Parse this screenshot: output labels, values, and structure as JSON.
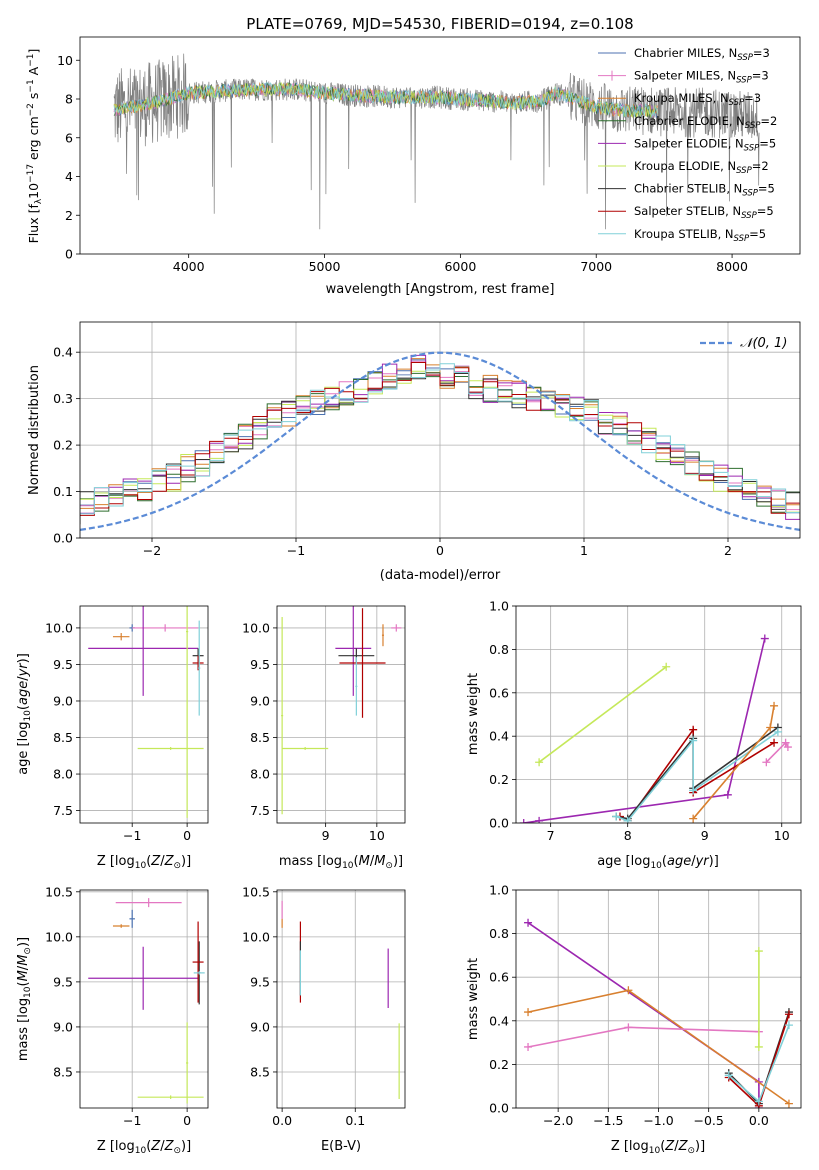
{
  "chart_data": [
    {
      "panel": "spectrum",
      "type": "line",
      "title": "PLATE=0769, MJD=54530, FIBERID=0194, z=0.108",
      "xlabel": "wavelength [Angstrom, rest frame]",
      "ylabel": "Flux [fλ10⁻¹⁷ erg cm⁻² s⁻¹ A⁻¹]",
      "xlim": [
        3200,
        8500
      ],
      "ylim": [
        0,
        11.2
      ],
      "xticks": [
        "4000",
        "5000",
        "6000",
        "7000",
        "8000"
      ],
      "yticks": [
        "0",
        "2",
        "4",
        "6",
        "8",
        "10"
      ],
      "grid": false,
      "legend_position": "top-right",
      "series": [
        {
          "name": "Chabrier MILES, NSSP=3",
          "label_main": "Chabrier MILES, N",
          "label_sub": "SSP",
          "label_tail": "=3",
          "color": "#4c72b0",
          "marker": "line"
        },
        {
          "name": "Salpeter MILES, NSSP=3",
          "label_main": "Salpeter MILES, N",
          "label_sub": "SSP",
          "label_tail": "=3",
          "color": "#e377c2",
          "marker": "plus"
        },
        {
          "name": "Kroupa MILES, NSSP=3",
          "label_main": "Kroupa MILES, N",
          "label_sub": "SSP",
          "label_tail": "=3",
          "color": "#d8802f",
          "marker": "line"
        },
        {
          "name": "Chabrier ELODIE, NSSP=2",
          "label_main": "Chabrier ELODIE, N",
          "label_sub": "SSP",
          "label_tail": "=2",
          "color": "#2f6e2f",
          "marker": "line"
        },
        {
          "name": "Salpeter ELODIE, NSSP=5",
          "label_main": "Salpeter ELODIE, N",
          "label_sub": "SSP",
          "label_tail": "=5",
          "color": "#9c27b0",
          "marker": "line"
        },
        {
          "name": "Kroupa ELODIE, NSSP=2",
          "label_main": "Kroupa ELODIE, N",
          "label_sub": "SSP",
          "label_tail": "=2",
          "color": "#c5e85a",
          "marker": "line"
        },
        {
          "name": "Chabrier STELIB, NSSP=5",
          "label_main": "Chabrier STELIB, N",
          "label_sub": "SSP",
          "label_tail": "=5",
          "color": "#333333",
          "marker": "line"
        },
        {
          "name": "Salpeter STELIB, NSSP=5",
          "label_main": "Salpeter STELIB, N",
          "label_sub": "SSP",
          "label_tail": "=5",
          "color": "#b00000",
          "marker": "line"
        },
        {
          "name": "Kroupa STELIB, NSSP=5",
          "label_main": "Kroupa STELIB, N",
          "label_sub": "SSP",
          "label_tail": "=5",
          "color": "#80d0d8",
          "marker": "line"
        }
      ],
      "data_color": "#808080",
      "continuum": {
        "x": [
          3400,
          3600,
          3800,
          4000,
          4200,
          4500,
          4800,
          5000,
          5200,
          5500,
          5800,
          6000,
          6200,
          6400,
          6600,
          6700,
          6800,
          7000,
          7200,
          7400,
          7600,
          7800,
          8000,
          8200
        ],
        "y": [
          7.4,
          7.6,
          7.9,
          8.3,
          8.4,
          8.5,
          8.5,
          8.3,
          8.2,
          8.1,
          8.1,
          8.0,
          7.9,
          7.8,
          7.9,
          8.3,
          8.1,
          7.6,
          7.4,
          7.4,
          7.3,
          7.3,
          7.2,
          7.1
        ]
      }
    },
    {
      "panel": "residuals",
      "type": "line",
      "xlabel": "(data-model)/error",
      "ylabel": "Normed distribution",
      "xlim": [
        -2.5,
        2.5
      ],
      "ylim": [
        0,
        0.465
      ],
      "xticks": [
        "−2",
        "−1",
        "0",
        "1",
        "2"
      ],
      "yticks": [
        "0.0",
        "0.1",
        "0.2",
        "0.3",
        "0.4"
      ],
      "grid": true,
      "legend_position": "top-right",
      "legend_label": "𝒩(0, 1)",
      "legend_color": "#5b8bd6",
      "bin_width": 0.1,
      "base_values": [
        0.04,
        0.04,
        0.05,
        0.06,
        0.07,
        0.08,
        0.09,
        0.1,
        0.11,
        0.12,
        0.13,
        0.15,
        0.16,
        0.18,
        0.2,
        0.22,
        0.24,
        0.26,
        0.27,
        0.28,
        0.29,
        0.3,
        0.31,
        0.32,
        0.34,
        0.35,
        0.36,
        0.37,
        0.36,
        0.35,
        0.34,
        0.33,
        0.32,
        0.31,
        0.31,
        0.3,
        0.3,
        0.29,
        0.28,
        0.27,
        0.25,
        0.24,
        0.23,
        0.21,
        0.19,
        0.18,
        0.16,
        0.14,
        0.13,
        0.12,
        0.1,
        0.09,
        0.08,
        0.07,
        0.06,
        0.06,
        0.05,
        0.04
      ]
    },
    {
      "panel": "age-vs-Z",
      "type": "scatter",
      "xlabel": "Z [log₁₀(Z/Z⊙)]",
      "ylabel": "age  [log₁₀(age/yr)]",
      "xlim": [
        -1.95,
        0.38
      ],
      "ylim": [
        7.33,
        10.3
      ],
      "xticks": [
        "−1",
        "0"
      ],
      "yticks": [
        "7.5",
        "8.0",
        "8.5",
        "9.0",
        "9.5",
        "10.0"
      ],
      "grid": true,
      "points": [
        {
          "series": 0,
          "x": -1.0,
          "xerr": 0.05,
          "y": 10.0,
          "yerr": 0.05
        },
        {
          "series": 1,
          "x": -0.4,
          "xerr": 0.6,
          "y": 10.0,
          "yerr": 0.05
        },
        {
          "series": 2,
          "x": -1.2,
          "xerr": 0.15,
          "y": 9.88,
          "yerr": 0.05
        },
        {
          "series": 4,
          "x": -0.8,
          "xerr": 1.0,
          "y": 9.72,
          "yerr": 0.65
        },
        {
          "series": 5,
          "x": 0.0,
          "xerr": 0.02,
          "y": 9.95,
          "yerr": 2.55
        },
        {
          "series": 5,
          "x": -0.3,
          "xerr": 0.6,
          "y": 8.35,
          "yerr": 0.02
        },
        {
          "series": 6,
          "x": 0.2,
          "xerr": 0.1,
          "y": 9.62,
          "yerr": 0.1
        },
        {
          "series": 7,
          "x": 0.2,
          "xerr": 0.1,
          "y": 9.52,
          "yerr": 0.1
        },
        {
          "series": 8,
          "x": 0.22,
          "xerr": 0.02,
          "y": 9.45,
          "yerr": 0.65
        }
      ]
    },
    {
      "panel": "age-vs-mass",
      "type": "scatter",
      "xlabel": "mass [log₁₀(M/M⊙)]",
      "xlim": [
        8.05,
        10.55
      ],
      "ylim": [
        7.33,
        10.3
      ],
      "xticks": [
        "9",
        "10"
      ],
      "yticks": [
        "7.5",
        "8.0",
        "8.5",
        "9.0",
        "9.5",
        "10.0"
      ],
      "grid": true,
      "points": [
        {
          "series": 1,
          "x": 10.38,
          "xerr": 0.1,
          "y": 10.0,
          "yerr": 0.05
        },
        {
          "series": 2,
          "x": 10.12,
          "xerr": 0.02,
          "y": 9.9,
          "yerr": 0.15
        },
        {
          "series": 4,
          "x": 9.54,
          "xerr": 0.35,
          "y": 9.72,
          "yerr": 0.65
        },
        {
          "series": 5,
          "x": 8.15,
          "xerr": 0.02,
          "y": 8.8,
          "yerr": 1.35
        },
        {
          "series": 5,
          "x": 8.6,
          "xerr": 0.45,
          "y": 8.35,
          "yerr": 0.02
        },
        {
          "series": 6,
          "x": 9.6,
          "xerr": 0.35,
          "y": 9.62,
          "yerr": 0.1
        },
        {
          "series": 7,
          "x": 9.72,
          "xerr": 0.45,
          "y": 9.52,
          "yerr": 0.75
        },
        {
          "series": 8,
          "x": 9.6,
          "xerr": 0.02,
          "y": 9.2,
          "yerr": 0.4
        }
      ]
    },
    {
      "panel": "weight-vs-age",
      "type": "line",
      "xlabel": "age  [log₁₀(age/yr)]",
      "ylabel": "mass weight",
      "xlim": [
        6.55,
        10.25
      ],
      "ylim": [
        0,
        1.0
      ],
      "xticks": [
        "7",
        "8",
        "9",
        "10"
      ],
      "yticks": [
        "0.0",
        "0.2",
        "0.4",
        "0.6",
        "0.8",
        "1.0"
      ],
      "grid": true,
      "lines": [
        {
          "series": 5,
          "x": [
            6.85,
            8.5
          ],
          "y": [
            0.28,
            0.72
          ]
        },
        {
          "series": 4,
          "x": [
            6.65,
            6.85,
            9.3,
            9.78
          ],
          "y": [
            0.0,
            0.01,
            0.13,
            0.85
          ]
        },
        {
          "series": 7,
          "x": [
            7.9,
            8.0,
            8.85,
            8.85,
            9.9
          ],
          "y": [
            0.03,
            0.01,
            0.43,
            0.14,
            0.37
          ]
        },
        {
          "series": 6,
          "x": [
            7.85,
            8.0,
            8.85,
            8.85,
            9.95
          ],
          "y": [
            0.03,
            0.02,
            0.39,
            0.16,
            0.44
          ]
        },
        {
          "series": 8,
          "x": [
            7.85,
            8.0,
            8.85,
            8.85,
            9.95
          ],
          "y": [
            0.03,
            0.01,
            0.38,
            0.15,
            0.42
          ]
        },
        {
          "series": 2,
          "x": [
            8.85,
            9.85,
            9.9
          ],
          "y": [
            0.02,
            0.44,
            0.54
          ]
        },
        {
          "series": 1,
          "x": [
            9.8,
            10.05,
            10.08
          ],
          "y": [
            0.28,
            0.37,
            0.35
          ]
        }
      ]
    },
    {
      "panel": "mass-vs-Z",
      "type": "scatter",
      "xlabel": "Z [log₁₀(Z/Z⊙)]",
      "ylabel": "mass [log₁₀(M/M⊙)]",
      "xlim": [
        -1.95,
        0.38
      ],
      "ylim": [
        8.1,
        10.52
      ],
      "xticks": [
        "−1",
        "0"
      ],
      "yticks": [
        "8.5",
        "9.0",
        "9.5",
        "10.0",
        "10.5"
      ],
      "grid": true,
      "points": [
        {
          "series": 0,
          "x": -1.0,
          "xerr": 0.05,
          "y": 10.2,
          "yerr": 0.1
        },
        {
          "series": 1,
          "x": -0.7,
          "xerr": 0.6,
          "y": 10.38,
          "yerr": 0.05
        },
        {
          "series": 2,
          "x": -1.2,
          "xerr": 0.15,
          "y": 10.12,
          "yerr": 0.02
        },
        {
          "series": 4,
          "x": -0.8,
          "xerr": 1.0,
          "y": 9.54,
          "yerr": 0.35
        },
        {
          "series": 5,
          "x": 0.0,
          "xerr": 0.02,
          "y": 8.6,
          "yerr": 0.45
        },
        {
          "series": 5,
          "x": -0.3,
          "xerr": 0.6,
          "y": 8.22,
          "yerr": 0.02
        },
        {
          "series": 6,
          "x": 0.22,
          "xerr": 0.02,
          "y": 9.6,
          "yerr": 0.35
        },
        {
          "series": 7,
          "x": 0.2,
          "xerr": 0.1,
          "y": 9.72,
          "yerr": 0.45
        },
        {
          "series": 8,
          "x": 0.22,
          "xerr": 0.1,
          "y": 9.6,
          "yerr": 0.02
        }
      ]
    },
    {
      "panel": "mass-vs-EBV",
      "type": "scatter",
      "xlabel": "E(B-V)",
      "xlim": [
        -0.007,
        0.168
      ],
      "ylim": [
        8.1,
        10.52
      ],
      "xticks": [
        "0.0",
        "0.1"
      ],
      "yticks": [
        "8.5",
        "9.0",
        "9.5",
        "10.0",
        "10.5"
      ],
      "grid": true,
      "points": [
        {
          "series": 1,
          "x": 0.0,
          "xerr": 0.0,
          "y": 10.3,
          "yerr": 0.1
        },
        {
          "series": 2,
          "x": 0.0,
          "xerr": 0.0,
          "y": 10.15,
          "yerr": 0.05
        },
        {
          "series": 4,
          "x": 0.145,
          "xerr": 0.0,
          "y": 9.54,
          "yerr": 0.33
        },
        {
          "series": 5,
          "x": 0.16,
          "xerr": 0.0,
          "y": 8.62,
          "yerr": 0.42
        },
        {
          "series": 7,
          "x": 0.025,
          "xerr": 0.0,
          "y": 9.72,
          "yerr": 0.45
        },
        {
          "series": 6,
          "x": 0.025,
          "xerr": 0.0,
          "y": 9.65,
          "yerr": 0.3
        },
        {
          "series": 8,
          "x": 0.025,
          "xerr": 0.0,
          "y": 9.6,
          "yerr": 0.25
        }
      ]
    },
    {
      "panel": "weight-vs-Z",
      "type": "line",
      "xlabel": "Z [log₁₀(Z/Z⊙)]",
      "ylabel": "mass weight",
      "xlim": [
        -2.42,
        0.42
      ],
      "ylim": [
        0,
        1.0
      ],
      "xticks": [
        "−2.0",
        "−1.5",
        "−1.0",
        "−0.5",
        "0.0"
      ],
      "yticks": [
        "0.0",
        "0.2",
        "0.4",
        "0.6",
        "0.8",
        "1.0"
      ],
      "grid": true,
      "lines": [
        {
          "series": 4,
          "x": [
            -2.3,
            0.0,
            0.0
          ],
          "y": [
            0.85,
            0.12,
            0.0
          ]
        },
        {
          "series": 2,
          "x": [
            -2.3,
            -1.3,
            0.3
          ],
          "y": [
            0.44,
            0.54,
            0.02
          ]
        },
        {
          "series": 1,
          "x": [
            -2.3,
            -1.3,
            0.0
          ],
          "y": [
            0.28,
            0.37,
            0.35
          ]
        },
        {
          "series": 5,
          "x": [
            0.0,
            0.0
          ],
          "y": [
            0.72,
            0.28
          ]
        },
        {
          "series": 6,
          "x": [
            -0.3,
            0.0,
            0.3
          ],
          "y": [
            0.16,
            0.02,
            0.44
          ]
        },
        {
          "series": 7,
          "x": [
            -0.3,
            0.0,
            0.3
          ],
          "y": [
            0.14,
            0.01,
            0.43
          ]
        },
        {
          "series": 8,
          "x": [
            -0.3,
            0.0,
            0.3
          ],
          "y": [
            0.15,
            0.03,
            0.38
          ]
        }
      ]
    }
  ]
}
